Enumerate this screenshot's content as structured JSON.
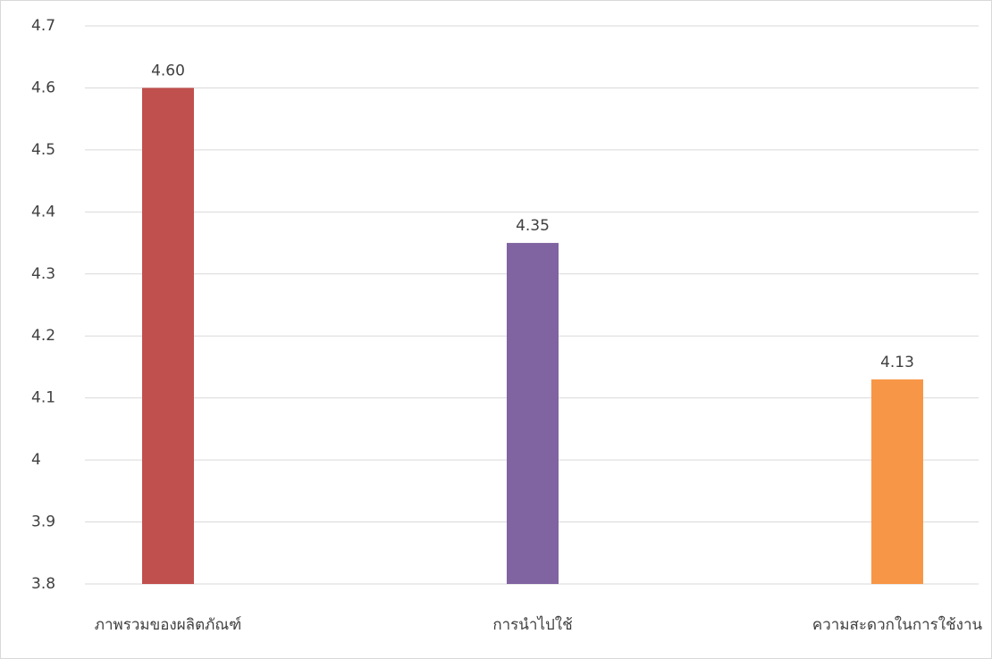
{
  "chart_data": {
    "type": "bar",
    "categories": [
      "ภาพรวมของผลิตภัณฑ์",
      "การนำไปใช้",
      "ความสะดวกในการใช้งาน"
    ],
    "values": [
      4.6,
      4.35,
      4.13
    ],
    "value_labels": [
      "4.60",
      "4.35",
      "4.13"
    ],
    "colors": [
      "#c0504d",
      "#8064a2",
      "#f79646"
    ],
    "ylim": [
      3.8,
      4.7
    ],
    "yticks": [
      3.8,
      3.9,
      4,
      4.1,
      4.2,
      4.3,
      4.4,
      4.5,
      4.6,
      4.7
    ],
    "grid": true
  }
}
